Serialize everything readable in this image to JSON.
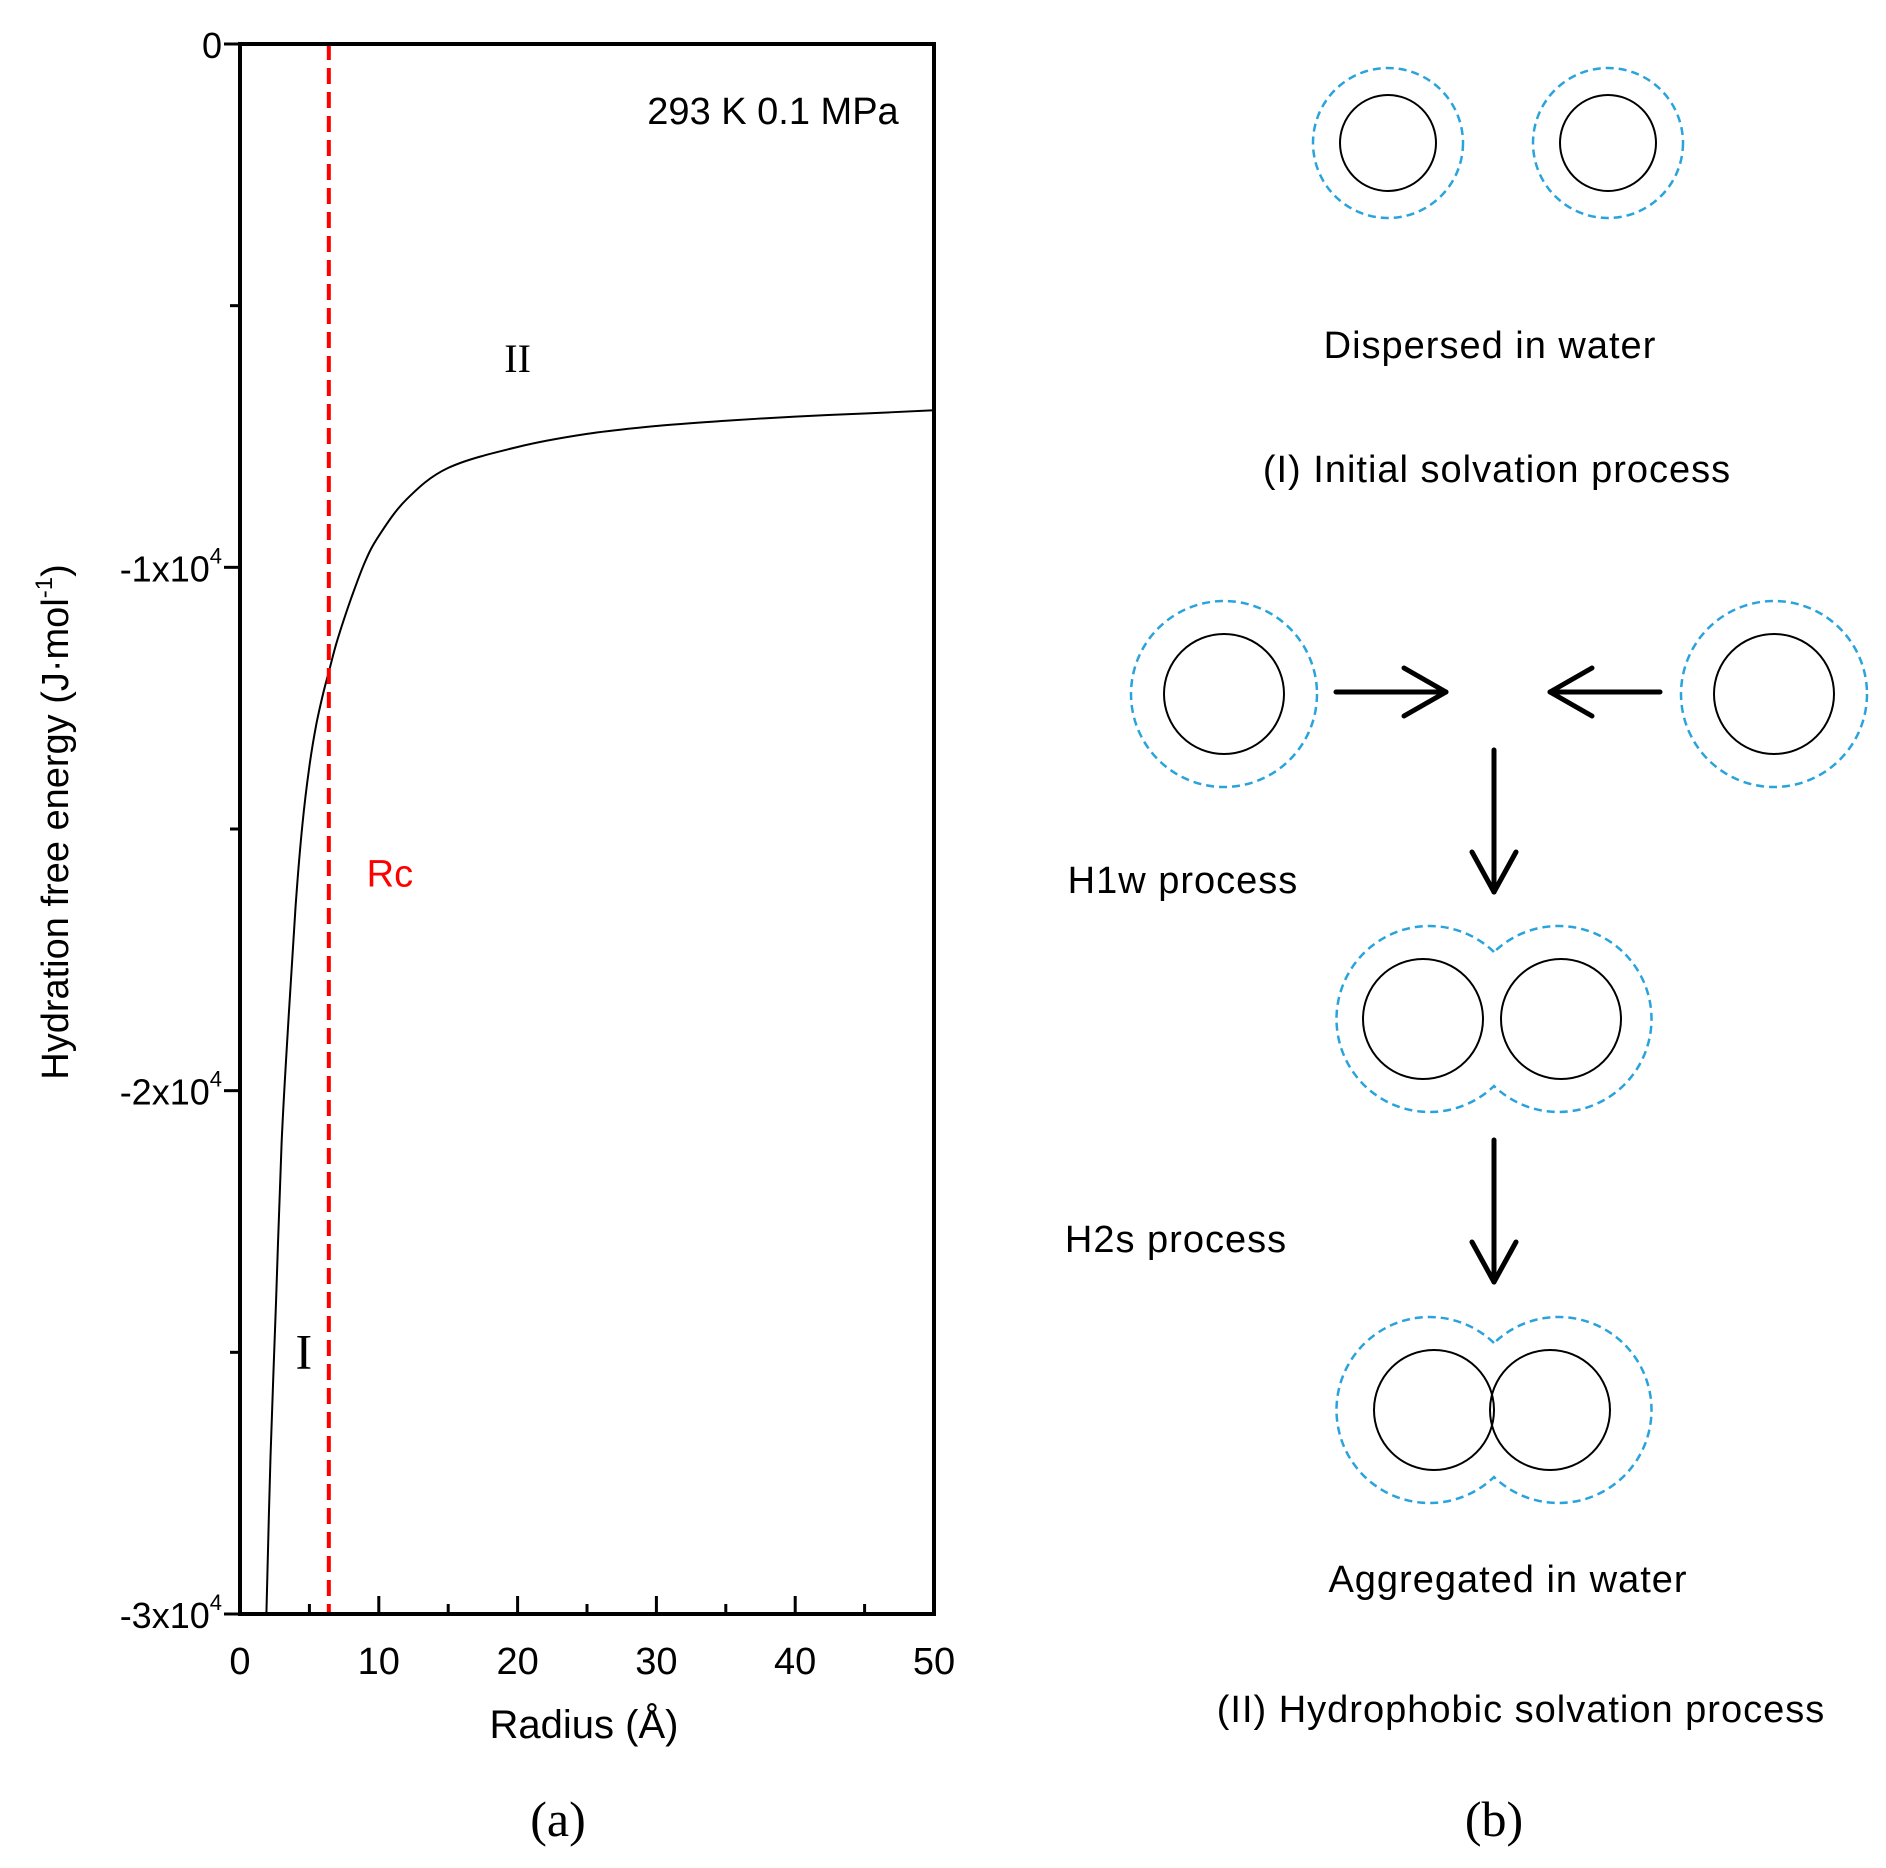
{
  "chart_data": {
    "type": "line",
    "panel_label": "(a)",
    "title": "",
    "xlabel": "Radius (Å)",
    "ylabel": "Hydration free energy (J·mol",
    "ylabel_exponent": "-1",
    "ylabel_close": ")",
    "xlim": [
      0,
      50
    ],
    "ylim": [
      -30000,
      0
    ],
    "x_ticks": [
      0,
      10,
      20,
      30,
      40,
      50
    ],
    "x_tick_labels": [
      "0",
      "10",
      "20",
      "30",
      "40",
      "50"
    ],
    "x_minor_ticks": [
      5,
      15,
      25,
      35,
      45
    ],
    "y_ticks": [
      0,
      -10000,
      -20000,
      -30000
    ],
    "y_tick_labels": [
      {
        "base": "0",
        "exp": ""
      },
      {
        "base": "-1x10",
        "exp": "4"
      },
      {
        "base": "-2x10",
        "exp": "4"
      },
      {
        "base": "-3x10",
        "exp": "4"
      }
    ],
    "y_minor_ticks": [
      -5000,
      -15000,
      -25000
    ],
    "annotation_conditions": "293 K  0.1 MPa",
    "region_labels": [
      {
        "text": "I",
        "x": 4.6,
        "y": -25000
      },
      {
        "text": "II",
        "x": 20,
        "y": -6000
      }
    ],
    "critical_radius": {
      "label": "Rc",
      "x": 6.4,
      "label_x": 10.8,
      "label_y": -16100,
      "color": "#ff0000"
    },
    "series": [
      {
        "name": "Hydration free energy",
        "color": "#000000",
        "x": [
          1.9,
          2.2,
          2.6,
          3.0,
          3.5,
          4.0,
          4.5,
          5.0,
          5.5,
          6.0,
          6.4,
          7.0,
          8.0,
          9.0,
          10.0,
          12.0,
          15.0,
          20.0,
          25.0,
          30.0,
          35.0,
          40.0,
          45.0,
          50.0
        ],
        "y": [
          -30000,
          -27000,
          -24000,
          -21000,
          -18600,
          -16500,
          -14900,
          -13800,
          -13000,
          -12400,
          -12000,
          -11400,
          -10600,
          -9900,
          -9400,
          -8700,
          -8100,
          -7700,
          -7450,
          -7300,
          -7200,
          -7120,
          -7060,
          -7000
        ]
      }
    ]
  },
  "schematic": {
    "panel_label": "(b)",
    "dispersed_label": "Dispersed in water",
    "initial_process_label": "(I) Initial solvation process",
    "h1w_label": "H1w process",
    "h2s_label": "H2s process",
    "aggregated_label": "Aggregated in water",
    "hydrophobic_process_label": "(II) Hydrophobic solvation process",
    "shell_color": "#29a3dc",
    "particle_color": "#000000"
  }
}
